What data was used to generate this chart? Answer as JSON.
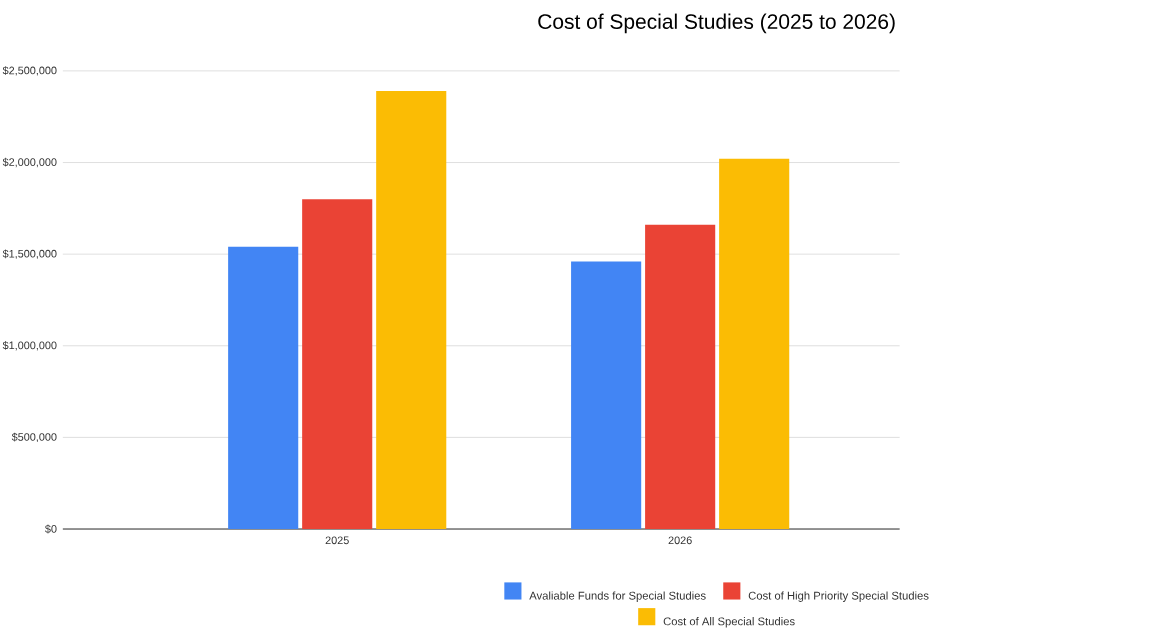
{
  "chart_data": {
    "type": "bar",
    "title": "Cost of Special Studies (2025 to 2026)",
    "categories": [
      "2025",
      "2026"
    ],
    "series": [
      {
        "name": "Avaliable Funds for Special Studies",
        "color": "#4285f4",
        "values": [
          1540000,
          1460000
        ]
      },
      {
        "name": "Cost of High Priority Special Studies",
        "color": "#ea4335",
        "values": [
          1800000,
          1660000
        ]
      },
      {
        "name": "Cost of All Special Studies",
        "color": "#fbbc04",
        "values": [
          2390000,
          2020000
        ]
      }
    ],
    "ylim": [
      0,
      2500000
    ],
    "yticks": [
      {
        "value": 0,
        "label": "$0"
      },
      {
        "value": 500000,
        "label": "$500,000"
      },
      {
        "value": 1000000,
        "label": "$1,000,000"
      },
      {
        "value": 1500000,
        "label": "$1,500,000"
      },
      {
        "value": 2000000,
        "label": "$2,000,000"
      },
      {
        "value": 2500000,
        "label": "$2,500,000"
      }
    ],
    "grid": "y",
    "legend": "bottom"
  }
}
